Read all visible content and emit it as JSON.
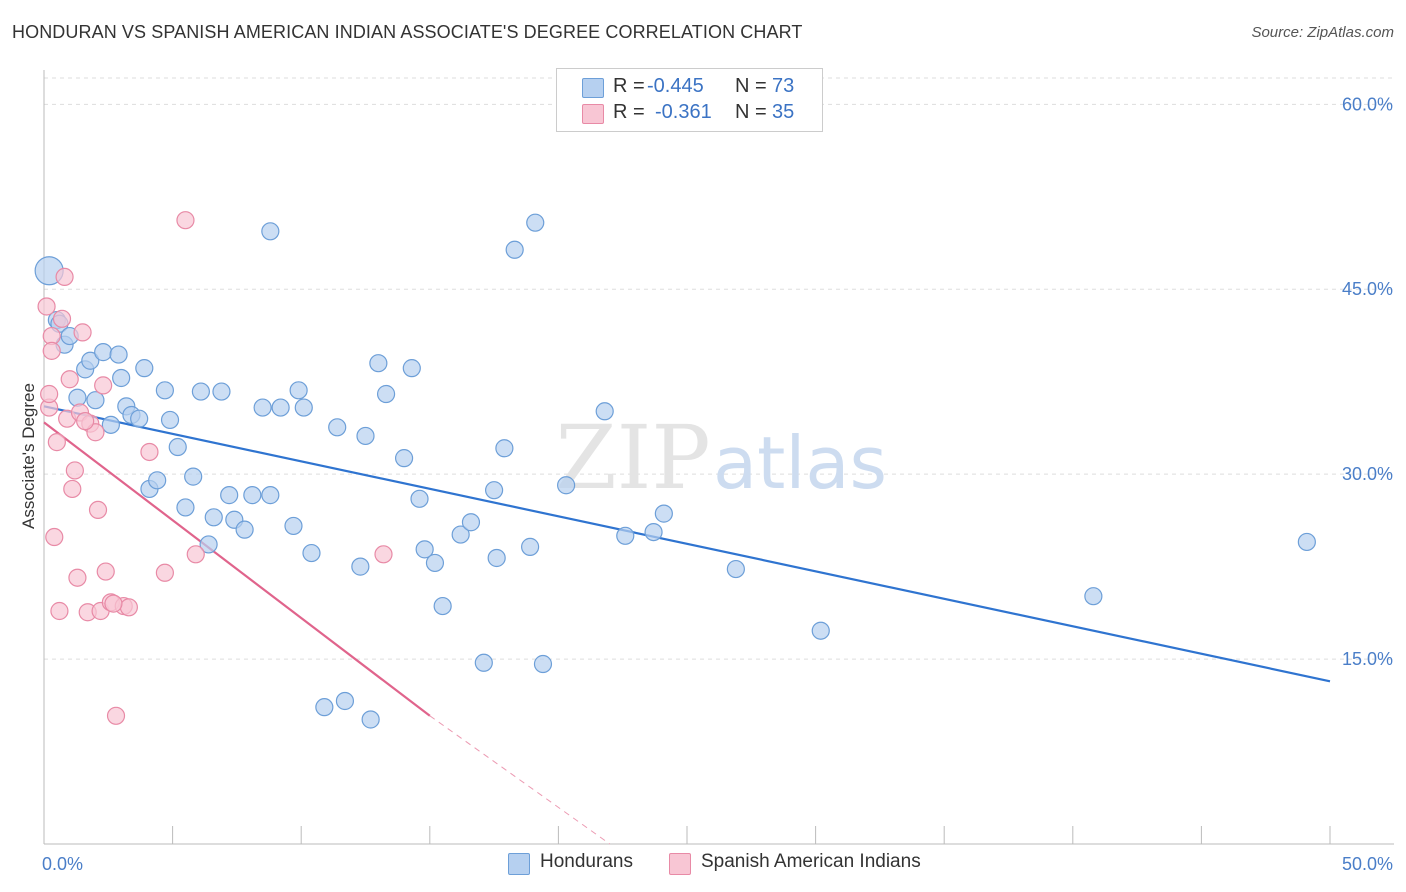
{
  "title": "HONDURAN VS SPANISH AMERICAN INDIAN ASSOCIATE'S DEGREE CORRELATION CHART",
  "source": "Source: ZipAtlas.com",
  "watermark": {
    "zip": "ZIP",
    "atlas": "atlas"
  },
  "legend": {
    "rows": [
      {
        "r_label": "R =",
        "r_value": "-0.445",
        "n_label": "N =",
        "n_value": "73"
      },
      {
        "r_label": "R =",
        "r_value": "-0.361",
        "n_label": "N =",
        "n_value": "35"
      }
    ]
  },
  "bottom_legend": {
    "series1": "Hondurans",
    "series2": "Spanish American Indians"
  },
  "colors": {
    "blue_fill": "#b6d0f0",
    "blue_stroke": "#6d9fd8",
    "blue_line": "#2f74d0",
    "pink_fill": "#f8c6d4",
    "pink_stroke": "#e88aa6",
    "pink_line": "#e0648c",
    "axis_text": "#4a7ec8",
    "grid": "#dddddd"
  },
  "chart_data": {
    "type": "scatter",
    "title": "HONDURAN VS SPANISH AMERICAN INDIAN ASSOCIATE'S DEGREE CORRELATION CHART",
    "xlabel": "",
    "ylabel": "Associate's Degree",
    "xlim": [
      0,
      50
    ],
    "ylim": [
      0,
      64
    ],
    "x_tick_labels": [
      "0.0%",
      "50.0%"
    ],
    "y_ticks": [
      15,
      30,
      45,
      60
    ],
    "y_tick_labels": [
      "15.0%",
      "30.0%",
      "45.0%",
      "60.0%"
    ],
    "grid": true,
    "legend_position": "top-center",
    "series": [
      {
        "name": "Hondurans",
        "r": -0.445,
        "n": 73,
        "trend": {
          "x": [
            0,
            50
          ],
          "y": [
            35.5,
            13.2
          ]
        },
        "points": [
          [
            0.2,
            46.5
          ],
          [
            0.5,
            42.5
          ],
          [
            0.6,
            42.2
          ],
          [
            0.8,
            40.5
          ],
          [
            1.0,
            41.2
          ],
          [
            1.3,
            36.2
          ],
          [
            1.6,
            38.5
          ],
          [
            1.8,
            39.2
          ],
          [
            2.0,
            36.0
          ],
          [
            2.3,
            39.9
          ],
          [
            2.6,
            34.0
          ],
          [
            2.9,
            39.7
          ],
          [
            3.0,
            37.8
          ],
          [
            3.2,
            35.5
          ],
          [
            3.4,
            34.8
          ],
          [
            3.7,
            34.5
          ],
          [
            3.9,
            38.6
          ],
          [
            4.1,
            28.8
          ],
          [
            4.4,
            29.5
          ],
          [
            4.7,
            36.8
          ],
          [
            4.9,
            34.4
          ],
          [
            5.2,
            32.2
          ],
          [
            5.5,
            27.3
          ],
          [
            5.8,
            29.8
          ],
          [
            6.1,
            36.7
          ],
          [
            6.4,
            24.3
          ],
          [
            6.6,
            26.5
          ],
          [
            6.9,
            36.7
          ],
          [
            7.2,
            28.3
          ],
          [
            7.4,
            26.3
          ],
          [
            7.8,
            25.5
          ],
          [
            8.1,
            28.3
          ],
          [
            8.5,
            35.4
          ],
          [
            8.8,
            28.3
          ],
          [
            8.8,
            49.7
          ],
          [
            9.2,
            35.4
          ],
          [
            9.7,
            25.8
          ],
          [
            9.9,
            36.8
          ],
          [
            10.1,
            35.4
          ],
          [
            10.4,
            23.6
          ],
          [
            10.9,
            11.1
          ],
          [
            11.4,
            33.8
          ],
          [
            11.7,
            11.6
          ],
          [
            12.3,
            22.5
          ],
          [
            12.5,
            33.1
          ],
          [
            12.7,
            10.1
          ],
          [
            13.0,
            39.0
          ],
          [
            13.3,
            36.5
          ],
          [
            14.0,
            31.3
          ],
          [
            14.3,
            38.6
          ],
          [
            14.6,
            28.0
          ],
          [
            14.8,
            23.9
          ],
          [
            15.2,
            22.8
          ],
          [
            15.5,
            19.3
          ],
          [
            16.2,
            25.1
          ],
          [
            16.6,
            26.1
          ],
          [
            17.1,
            14.7
          ],
          [
            17.5,
            28.7
          ],
          [
            17.6,
            23.2
          ],
          [
            17.9,
            32.1
          ],
          [
            18.3,
            48.2
          ],
          [
            18.9,
            24.1
          ],
          [
            19.1,
            50.4
          ],
          [
            19.4,
            14.6
          ],
          [
            20.3,
            29.1
          ],
          [
            21.8,
            35.1
          ],
          [
            22.6,
            25.0
          ],
          [
            23.7,
            25.3
          ],
          [
            24.1,
            26.8
          ],
          [
            26.9,
            22.3
          ],
          [
            30.2,
            17.3
          ],
          [
            40.8,
            20.1
          ],
          [
            49.1,
            24.5
          ]
        ]
      },
      {
        "name": "Spanish American Indians",
        "r": -0.361,
        "n": 35,
        "trend": {
          "x": [
            0,
            15
          ],
          "y": [
            34.2,
            10.4
          ]
        },
        "trend_dashed_extension": {
          "x": [
            15,
            22
          ],
          "y": [
            10.4,
            0
          ]
        },
        "points": [
          [
            0.1,
            43.6
          ],
          [
            0.2,
            35.4
          ],
          [
            0.2,
            36.5
          ],
          [
            0.3,
            41.2
          ],
          [
            0.4,
            24.9
          ],
          [
            0.6,
            18.9
          ],
          [
            0.8,
            46.0
          ],
          [
            0.9,
            34.5
          ],
          [
            1.0,
            37.7
          ],
          [
            1.1,
            28.8
          ],
          [
            1.2,
            30.3
          ],
          [
            1.3,
            21.6
          ],
          [
            1.4,
            35.0
          ],
          [
            1.5,
            41.5
          ],
          [
            1.7,
            18.8
          ],
          [
            1.8,
            34.1
          ],
          [
            2.0,
            33.4
          ],
          [
            2.1,
            27.1
          ],
          [
            2.2,
            18.9
          ],
          [
            2.3,
            37.2
          ],
          [
            2.4,
            22.1
          ],
          [
            2.6,
            19.6
          ],
          [
            2.8,
            10.4
          ],
          [
            3.1,
            19.3
          ],
          [
            3.3,
            19.2
          ],
          [
            4.1,
            31.8
          ],
          [
            4.7,
            22.0
          ],
          [
            5.5,
            50.6
          ],
          [
            5.9,
            23.5
          ],
          [
            0.5,
            32.6
          ],
          [
            0.3,
            40.0
          ],
          [
            1.6,
            34.3
          ],
          [
            2.7,
            19.5
          ],
          [
            13.2,
            23.5
          ],
          [
            0.7,
            42.6
          ]
        ]
      }
    ]
  }
}
